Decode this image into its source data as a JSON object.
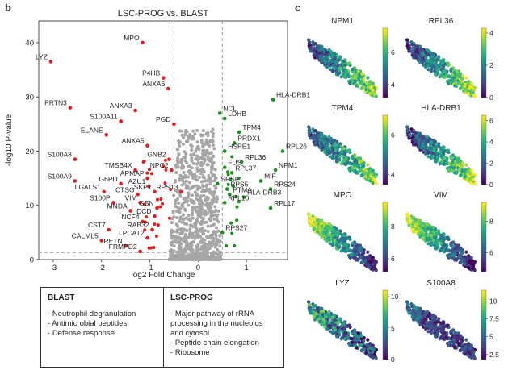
{
  "panels": {
    "b": "b",
    "c": "c"
  },
  "chart_data": [
    {
      "type": "scatter",
      "title": "LSC-PROG vs. BLAST",
      "xlabel": "log2 Fold Change",
      "ylabel": "-log10 P-value",
      "xlim": [
        -3.3,
        1.85
      ],
      "ylim": [
        0,
        44
      ],
      "xticks": [
        -3,
        -2,
        -1,
        0,
        1
      ],
      "yticks": [
        0,
        10,
        20,
        30,
        40
      ],
      "fc_threshold": [
        -0.5,
        0.5
      ],
      "p_threshold_y": 1.3,
      "colors": {
        "down": "#e02020",
        "up": "#1a8f1a",
        "ns": "#a6a6a6"
      },
      "labeled_points": [
        {
          "gene": "MPO",
          "x": -1.15,
          "y": 40,
          "dir": "down"
        },
        {
          "gene": "LYZ",
          "x": -3.05,
          "y": 36.5,
          "dir": "down"
        },
        {
          "gene": "P4HB",
          "x": -0.72,
          "y": 33.5,
          "dir": "down"
        },
        {
          "gene": "ANXA6",
          "x": -0.62,
          "y": 31.5,
          "dir": "down"
        },
        {
          "gene": "PRTN3",
          "x": -2.65,
          "y": 28,
          "dir": "down"
        },
        {
          "gene": "ANXA3",
          "x": -1.3,
          "y": 27.5,
          "dir": "down"
        },
        {
          "gene": "S100A11",
          "x": -1.6,
          "y": 25.5,
          "dir": "down"
        },
        {
          "gene": "PGD",
          "x": -0.5,
          "y": 25,
          "dir": "down"
        },
        {
          "gene": "ELANE",
          "x": -1.9,
          "y": 23,
          "dir": "down"
        },
        {
          "gene": "ANXA5",
          "x": -1.05,
          "y": 21,
          "dir": "down"
        },
        {
          "gene": "S100A8",
          "x": -2.55,
          "y": 18.5,
          "dir": "down"
        },
        {
          "gene": "GNB2",
          "x": -0.6,
          "y": 18.5,
          "dir": "down"
        },
        {
          "gene": "TMSB4X",
          "x": -1.3,
          "y": 16.5,
          "dir": "down"
        },
        {
          "gene": "NPC2",
          "x": -0.55,
          "y": 16.5,
          "dir": "down"
        },
        {
          "gene": "S100A9",
          "x": -2.55,
          "y": 14.5,
          "dir": "down"
        },
        {
          "gene": "APMAP",
          "x": -1.05,
          "y": 15,
          "dir": "down"
        },
        {
          "gene": "G6PD",
          "x": -1.6,
          "y": 14,
          "dir": "down"
        },
        {
          "gene": "AZU1",
          "x": -1.02,
          "y": 13.5,
          "dir": "down"
        },
        {
          "gene": "LGALS1",
          "x": -1.95,
          "y": 12.5,
          "dir": "down"
        },
        {
          "gene": "CTSG",
          "x": -1.25,
          "y": 12,
          "dir": "down"
        },
        {
          "gene": "SKP1",
          "x": -0.9,
          "y": 12.5,
          "dir": "down"
        },
        {
          "gene": "RPS13",
          "x": -0.35,
          "y": 12.5,
          "dir": "down"
        },
        {
          "gene": "S100P",
          "x": -1.75,
          "y": 10.5,
          "dir": "down"
        },
        {
          "gene": "VIM",
          "x": -1.2,
          "y": 10.5,
          "dir": "down"
        },
        {
          "gene": "GSN",
          "x": -0.85,
          "y": 9.5,
          "dir": "down"
        },
        {
          "gene": "MNDA",
          "x": -1.4,
          "y": 9,
          "dir": "down"
        },
        {
          "gene": "DCD",
          "x": -0.9,
          "y": 8,
          "dir": "down"
        },
        {
          "gene": "NCF4",
          "x": -1.15,
          "y": 7,
          "dir": "down"
        },
        {
          "gene": "CST7",
          "x": -1.85,
          "y": 5.5,
          "dir": "down"
        },
        {
          "gene": "RAB32",
          "x": -0.95,
          "y": 5.5,
          "dir": "down"
        },
        {
          "gene": "LPCAT2",
          "x": -1.05,
          "y": 4,
          "dir": "down"
        },
        {
          "gene": "CALML5",
          "x": -2.0,
          "y": 3.5,
          "dir": "down"
        },
        {
          "gene": "RETN",
          "x": -1.5,
          "y": 2.5,
          "dir": "down"
        },
        {
          "gene": "FRMPD2",
          "x": -1.2,
          "y": 1.5,
          "dir": "down"
        },
        {
          "gene": "HLA-DRB1",
          "x": 1.55,
          "y": 29.5,
          "dir": "up"
        },
        {
          "gene": "NCL",
          "x": 0.45,
          "y": 27,
          "dir": "up"
        },
        {
          "gene": "LDHB",
          "x": 0.55,
          "y": 26,
          "dir": "up"
        },
        {
          "gene": "TPM4",
          "x": 0.85,
          "y": 23.5,
          "dir": "up"
        },
        {
          "gene": "PRDX1",
          "x": 0.75,
          "y": 21.5,
          "dir": "up"
        },
        {
          "gene": "RPL26",
          "x": 1.75,
          "y": 20,
          "dir": "up"
        },
        {
          "gene": "HSPE1",
          "x": 0.55,
          "y": 20,
          "dir": "up"
        },
        {
          "gene": "RPL36",
          "x": 0.9,
          "y": 18,
          "dir": "up"
        },
        {
          "gene": "FUS",
          "x": 0.55,
          "y": 17,
          "dir": "up"
        },
        {
          "gene": "NPM1",
          "x": 1.6,
          "y": 16.5,
          "dir": "up"
        },
        {
          "gene": "RPL37",
          "x": 0.7,
          "y": 16,
          "dir": "up"
        },
        {
          "gene": "SRSF1",
          "x": 0.4,
          "y": 14,
          "dir": "up"
        },
        {
          "gene": "MIF",
          "x": 1.3,
          "y": 14.5,
          "dir": "up"
        },
        {
          "gene": "RPS5",
          "x": 0.6,
          "y": 13,
          "dir": "up"
        },
        {
          "gene": "RPS24",
          "x": 1.5,
          "y": 13,
          "dir": "up"
        },
        {
          "gene": "PTMA",
          "x": 0.65,
          "y": 12,
          "dir": "up"
        },
        {
          "gene": "HLA-DRB3",
          "x": 0.95,
          "y": 11.5,
          "dir": "up"
        },
        {
          "gene": "RPL10",
          "x": 0.55,
          "y": 10.5,
          "dir": "up"
        },
        {
          "gene": "RPL17",
          "x": 1.5,
          "y": 9.5,
          "dir": "up"
        },
        {
          "gene": "RPS27",
          "x": 0.5,
          "y": 5,
          "dir": "up"
        }
      ]
    },
    {
      "type": "scatter",
      "subtype": "embedding-feature-plots",
      "colormap": "viridis",
      "plots": [
        {
          "title": "NPM1",
          "cbar_ticks": [
            4,
            6
          ],
          "cbar_range": [
            3.2,
            7.5
          ],
          "pattern": "high-right"
        },
        {
          "title": "RPL36",
          "cbar_ticks": [
            0,
            2,
            4
          ],
          "cbar_range": [
            0,
            4.3
          ],
          "pattern": "high-right"
        },
        {
          "title": "TPM4",
          "cbar_ticks": [
            4,
            6
          ],
          "cbar_range": [
            3.5,
            7
          ],
          "pattern": "mid-right"
        },
        {
          "title": "HLA-DRB1",
          "cbar_ticks": [
            0,
            2,
            4,
            6
          ],
          "cbar_range": [
            0,
            6.5
          ],
          "pattern": "high-right"
        },
        {
          "title": "MPO",
          "cbar_ticks": [
            6,
            8
          ],
          "cbar_range": [
            5.2,
            9.5
          ],
          "pattern": "high-left"
        },
        {
          "title": "VIM",
          "cbar_ticks": [
            6,
            8
          ],
          "cbar_range": [
            4.8,
            9.2
          ],
          "pattern": "high-left"
        },
        {
          "title": "LYZ",
          "cbar_ticks": [
            0,
            5,
            10
          ],
          "cbar_range": [
            0,
            11
          ],
          "pattern": "mixed"
        },
        {
          "title": "S100A8",
          "cbar_ticks": [
            2.5,
            5.0,
            7.5,
            10.0
          ],
          "cbar_range": [
            1.8,
            11.5
          ],
          "pattern": "low"
        }
      ]
    }
  ],
  "legend_boxes": {
    "blast": {
      "title": "BLAST",
      "items": [
        "Neutrophil degranulation",
        "Antimicrobial peptides",
        "Defense response"
      ]
    },
    "lsc": {
      "title": "LSC-PROG",
      "items": [
        "Major pathway of rRNA processing in the nucleolus and cytosol",
        "Peptide chain elongation",
        "Ribosome"
      ]
    }
  }
}
